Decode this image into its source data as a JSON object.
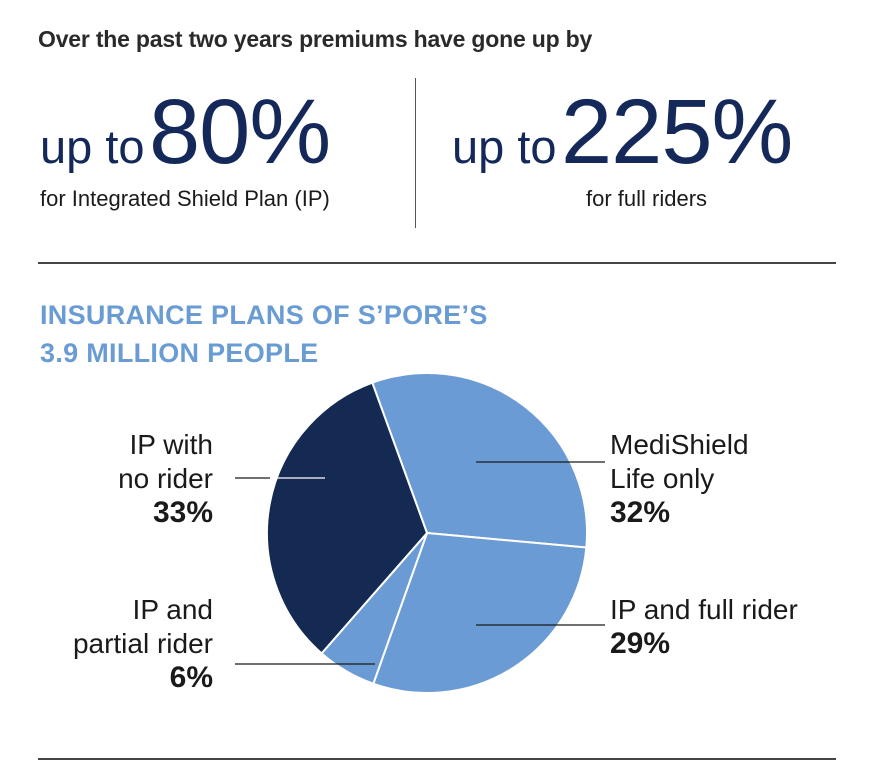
{
  "headline": "Over the past two years premiums have gone up by",
  "stats": [
    {
      "prefix": "up to",
      "value": "80%",
      "caption": "for Integrated Shield Plan (IP)"
    },
    {
      "prefix": "up to",
      "value": "225%",
      "caption": "for full riders"
    }
  ],
  "colors": {
    "navy": "#152a52",
    "medium_blue": "#6b9bd4",
    "title_blue": "#6a9cd4",
    "stat_text": "#14285a"
  },
  "chart_data": {
    "type": "pie",
    "title": "INSURANCE PLANS OF S'PORE'S 3.9 MILLION PEOPLE",
    "title_lines": [
      "INSURANCE PLANS OF S’PORE’S",
      "3.9 MILLION PEOPLE"
    ],
    "slices": [
      {
        "label_lines": [
          "MediShield",
          "Life only"
        ],
        "label": "MediShield Life only",
        "value": 32,
        "display": "32%",
        "color": "#6b9bd4"
      },
      {
        "label_lines": [
          "IP and full rider"
        ],
        "label": "IP and full rider",
        "value": 29,
        "display": "29%",
        "color": "#6b9bd4"
      },
      {
        "label_lines": [
          "IP and",
          "partial rider"
        ],
        "label": "IP and partial rider",
        "value": 6,
        "display": "6%",
        "color": "#6b9bd4"
      },
      {
        "label_lines": [
          "IP with",
          "no rider"
        ],
        "label": "IP with no rider",
        "value": 33,
        "display": "33%",
        "color": "#152a52"
      }
    ]
  }
}
